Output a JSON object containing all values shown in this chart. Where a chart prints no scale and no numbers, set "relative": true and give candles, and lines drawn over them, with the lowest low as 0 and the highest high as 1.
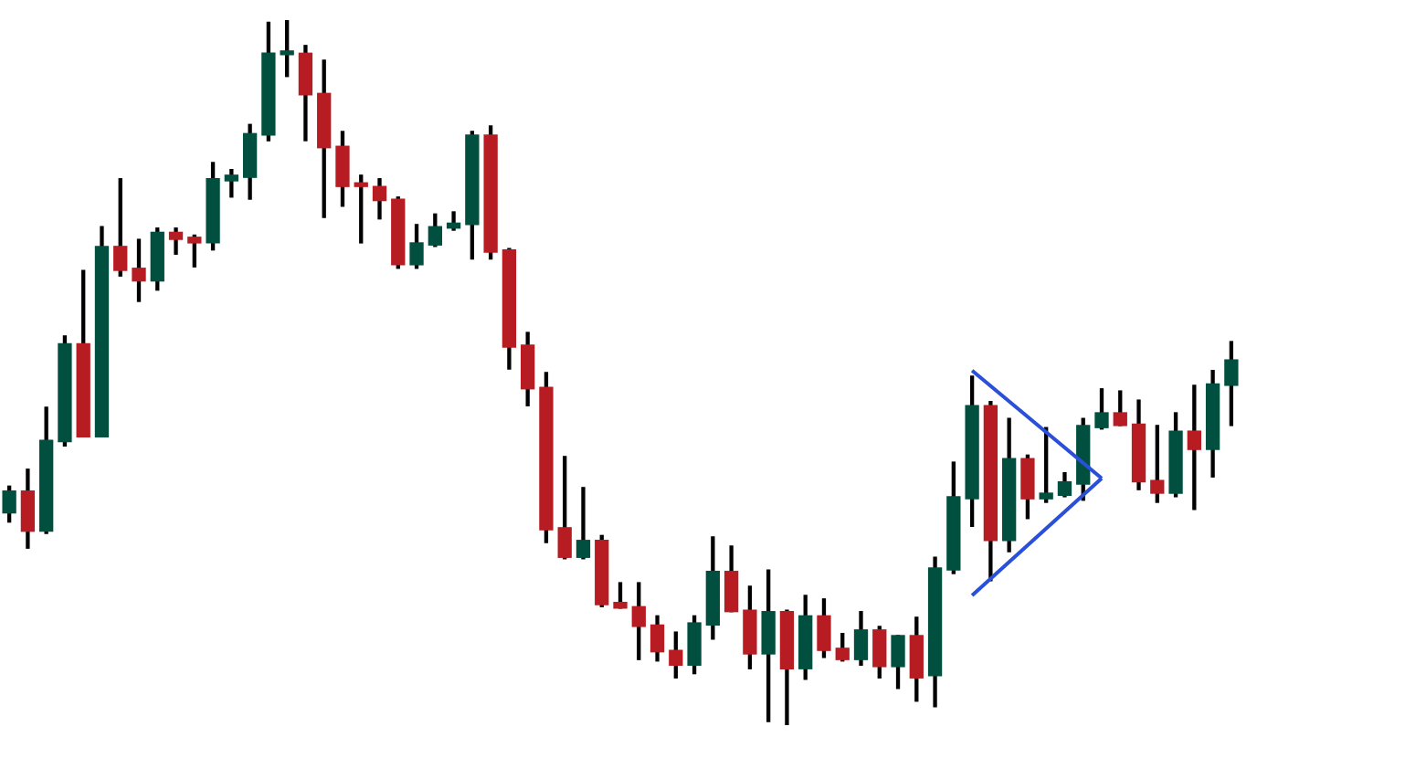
{
  "chart_data": {
    "type": "candlestick",
    "relative": true,
    "series": [
      {
        "type": "line",
        "color": "#2a4fd8",
        "values": [
          null,
          null,
          null,
          null,
          null,
          null,
          null,
          null,
          null,
          null,
          null,
          null,
          null,
          null,
          null,
          null,
          null,
          null,
          null,
          null,
          null,
          null,
          null,
          null,
          null,
          null,
          null,
          null,
          null,
          null,
          null,
          null,
          null,
          null,
          null,
          null,
          null,
          null,
          null,
          null,
          null,
          null,
          null,
          null,
          null,
          null,
          null,
          null,
          null,
          null,
          null,
          null,
          0.503,
          null,
          null,
          null,
          null,
          null,
          null,
          0.35,
          null,
          null,
          null,
          null,
          null,
          null,
          null
        ]
      },
      {
        "type": "line",
        "color": "#2a4fd8",
        "values": [
          null,
          null,
          null,
          null,
          null,
          null,
          null,
          null,
          null,
          null,
          null,
          null,
          null,
          null,
          null,
          null,
          null,
          null,
          null,
          null,
          null,
          null,
          null,
          null,
          null,
          null,
          null,
          null,
          null,
          null,
          null,
          null,
          null,
          null,
          null,
          null,
          null,
          null,
          null,
          null,
          null,
          null,
          null,
          null,
          null,
          null,
          null,
          null,
          null,
          null,
          null,
          null,
          0.184,
          null,
          null,
          null,
          null,
          null,
          null,
          0.35,
          null,
          null,
          null,
          null,
          null,
          null,
          null
        ]
      }
    ],
    "categories": [
      null,
      null,
      null,
      null,
      null,
      null,
      null,
      null,
      null,
      null,
      null,
      null,
      null,
      null,
      null,
      null,
      null,
      null,
      null,
      null,
      null,
      null,
      null,
      null,
      null,
      null,
      null,
      null,
      null,
      null,
      null,
      null,
      null,
      null,
      null,
      null,
      null,
      null,
      null,
      null,
      null,
      null,
      null,
      null,
      null,
      null,
      null,
      null,
      null,
      null,
      null,
      null,
      null,
      null,
      null,
      null,
      null,
      null,
      null,
      null,
      null,
      null,
      null,
      null,
      null,
      null,
      null
    ],
    "ohlc": [
      [
        0.301,
        0.339,
        0.288,
        0.332
      ],
      [
        0.332,
        0.363,
        0.251,
        0.275
      ],
      [
        0.275,
        0.451,
        0.272,
        0.404
      ],
      [
        0.402,
        0.552,
        0.396,
        0.541
      ],
      [
        0.541,
        0.645,
        0.409,
        0.409
      ],
      [
        0.409,
        0.707,
        0.409,
        0.679
      ],
      [
        0.679,
        0.775,
        0.637,
        0.645
      ],
      [
        0.648,
        0.689,
        0.601,
        0.63
      ],
      [
        0.63,
        0.705,
        0.617,
        0.699
      ],
      [
        0.699,
        0.705,
        0.668,
        0.689
      ],
      [
        0.692,
        0.695,
        0.65,
        0.684
      ],
      [
        0.684,
        0.798,
        0.674,
        0.775
      ],
      [
        0.772,
        0.788,
        0.749,
        0.78
      ],
      [
        0.777,
        0.852,
        0.746,
        0.839
      ],
      [
        0.837,
        0.997,
        0.829,
        0.953
      ],
      [
        0.951,
        1,
        0.92,
        0.953
      ],
      [
        0.953,
        0.964,
        0.829,
        0.894
      ],
      [
        0.896,
        0.943,
        0.72,
        0.819
      ],
      [
        0.821,
        0.842,
        0.736,
        0.764
      ],
      [
        0.767,
        0.78,
        0.684,
        0.764
      ],
      [
        0.764,
        0.775,
        0.718,
        0.744
      ],
      [
        0.746,
        0.749,
        0.648,
        0.653
      ],
      [
        0.653,
        0.71,
        0.648,
        0.684
      ],
      [
        0.681,
        0.725,
        0.679,
        0.707
      ],
      [
        0.705,
        0.728,
        0.702,
        0.712
      ],
      [
        0.71,
        0.842,
        0.661,
        0.837
      ],
      [
        0.837,
        0.85,
        0.661,
        0.671
      ],
      [
        0.674,
        0.676,
        0.505,
        0.536
      ],
      [
        0.539,
        0.557,
        0.453,
        0.477
      ],
      [
        0.479,
        0.5,
        0.259,
        0.277
      ],
      [
        0.28,
        0.381,
        0.236,
        0.238
      ],
      [
        0.238,
        0.337,
        0.236,
        0.262
      ],
      [
        0.262,
        0.269,
        0.168,
        0.171
      ],
      [
        0.174,
        0.202,
        0.166,
        0.166
      ],
      [
        0.168,
        0.202,
        0.093,
        0.14
      ],
      [
        0.142,
        0.155,
        0.091,
        0.104
      ],
      [
        0.106,
        0.132,
        0.067,
        0.085
      ],
      [
        0.085,
        0.155,
        0.073,
        0.145
      ],
      [
        0.142,
        0.267,
        0.122,
        0.218
      ],
      [
        0.218,
        0.254,
        0.161,
        0.161
      ],
      [
        0.163,
        0.197,
        0.08,
        0.101
      ],
      [
        0.101,
        0.22,
        0.005,
        0.161
      ],
      [
        0.161,
        0.163,
        0,
        0.08
      ],
      [
        0.08,
        0.184,
        0.065,
        0.155
      ],
      [
        0.155,
        0.179,
        0.096,
        0.106
      ],
      [
        0.109,
        0.13,
        0.091,
        0.093
      ],
      [
        0.093,
        0.161,
        0.085,
        0.135
      ],
      [
        0.135,
        0.14,
        0.067,
        0.083
      ],
      [
        0.083,
        0.127,
        0.052,
        0.127
      ],
      [
        0.127,
        0.153,
        0.034,
        0.067
      ],
      [
        0.07,
        0.238,
        0.026,
        0.223
      ],
      [
        0.22,
        0.373,
        0.215,
        0.324
      ],
      [
        0.321,
        0.495,
        0.282,
        0.453
      ],
      [
        0.453,
        0.459,
        0.205,
        0.262
      ],
      [
        0.262,
        0.435,
        0.246,
        0.378
      ],
      [
        0.378,
        0.383,
        0.293,
        0.321
      ],
      [
        0.321,
        0.422,
        0.316,
        0.329
      ],
      [
        0.326,
        0.358,
        0.324,
        0.345
      ],
      [
        0.342,
        0.435,
        0.319,
        0.425
      ],
      [
        0.422,
        0.477,
        0.42,
        0.443
      ],
      [
        0.443,
        0.474,
        0.425,
        0.425
      ],
      [
        0.427,
        0.461,
        0.334,
        0.345
      ],
      [
        0.347,
        0.425,
        0.316,
        0.329
      ],
      [
        0.329,
        0.443,
        0.324,
        0.417
      ],
      [
        0.417,
        0.482,
        0.306,
        0.391
      ],
      [
        0.391,
        0.503,
        0.352,
        0.484
      ],
      [
        0.482,
        0.544,
        0.425,
        0.518
      ]
    ],
    "colors": [
      "#01503f",
      "#b71c22",
      "#01503f",
      "#01503f",
      "#b71c22",
      "#01503f",
      "#b71c22",
      "#b71c22",
      "#01503f",
      "#b71c22",
      "#b71c22",
      "#01503f",
      "#01503f",
      "#01503f",
      "#01503f",
      "#01503f",
      "#b71c22",
      "#b71c22",
      "#b71c22",
      "#b71c22",
      "#b71c22",
      "#b71c22",
      "#01503f",
      "#01503f",
      "#01503f",
      "#01503f",
      "#b71c22",
      "#b71c22",
      "#b71c22",
      "#b71c22",
      "#b71c22",
      "#01503f",
      "#b71c22",
      "#b71c22",
      "#b71c22",
      "#b71c22",
      "#b71c22",
      "#01503f",
      "#01503f",
      "#b71c22",
      "#b71c22",
      "#01503f",
      "#b71c22",
      "#01503f",
      "#b71c22",
      "#b71c22",
      "#01503f",
      "#b71c22",
      "#01503f",
      "#b71c22",
      "#01503f",
      "#01503f",
      "#01503f",
      "#b71c22",
      "#01503f",
      "#b71c22",
      "#01503f",
      "#01503f",
      "#01503f",
      "#01503f",
      "#b71c22",
      "#b71c22",
      "#b71c22",
      "#01503f",
      "#b71c22",
      "#01503f",
      "#01503f"
    ]
  }
}
